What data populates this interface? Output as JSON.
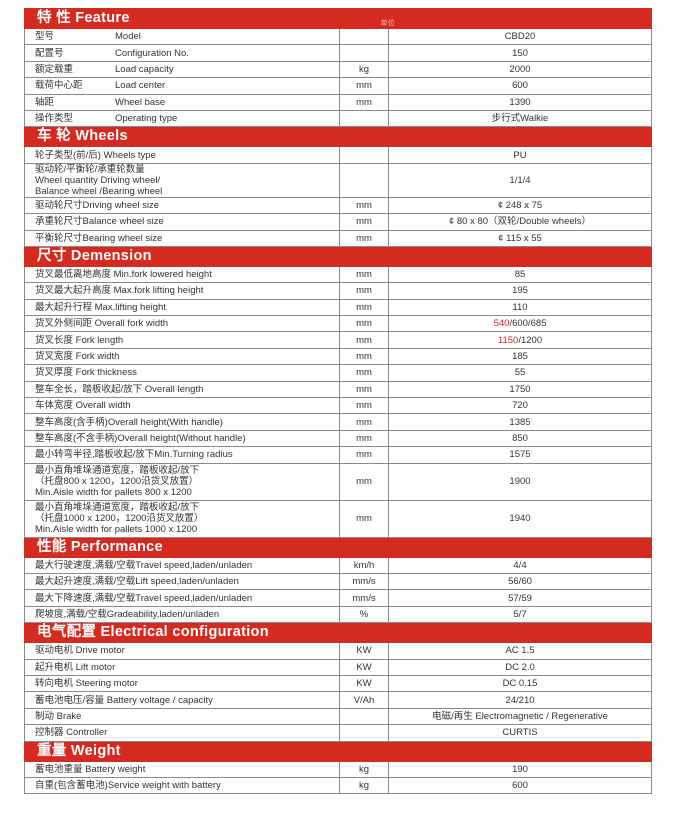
{
  "colors": {
    "accent": "#d42a20",
    "highlight": "#d42a20"
  },
  "sections": [
    {
      "title": "特 性 Feature",
      "unit_header": "单位",
      "rows": [
        {
          "cn": "型号",
          "en": "Model",
          "unit": "",
          "value": "CBD20"
        },
        {
          "cn": "配置号",
          "en": "Configuration    No.",
          "unit": "",
          "value": "150"
        },
        {
          "cn": "额定载重",
          "en": "Load capacity",
          "unit": "kg",
          "value": "2000"
        },
        {
          "cn": "载荷中心距",
          "en": "Load center",
          "unit": "mm",
          "value": "600"
        },
        {
          "cn": "轴距",
          "en": "Wheel base",
          "unit": "mm",
          "value": "1390"
        },
        {
          "cn": "操作类型",
          "en": "Operating  type",
          "unit": "",
          "value": "步行式Walkie"
        }
      ]
    },
    {
      "title": "车 轮 Wheels",
      "rows": [
        {
          "label": "轮子类型(前/后)  Wheels type",
          "unit": "",
          "value": "PU"
        },
        {
          "label": "驱动轮/平衡轮/承重轮数量\nWheel quantity Driving wheel/\nBalance wheel /Bearing wheel",
          "unit": "",
          "value": "1/1/4",
          "tall": 3
        },
        {
          "label": "驱动轮尺寸Driving wheel size",
          "unit": "mm",
          "value": "¢ 248 x 75"
        },
        {
          "label": "承重轮尺寸Balance wheel size",
          "unit": "mm",
          "value": "¢ 80 x 80（双轮/Double wheels）"
        },
        {
          "label": "平衡轮尺寸Bearing wheel size",
          "unit": "mm",
          "value": "¢ 115 x 55"
        }
      ]
    },
    {
      "title": "尺寸 Demension",
      "rows": [
        {
          "label": "货叉最低离地高度 Min.fork lowered  height",
          "unit": "mm",
          "value": "85"
        },
        {
          "label": "货叉最大起升高度 Max.fork lifting height",
          "unit": "mm",
          "value": "195"
        },
        {
          "label": "最大起升行程 Max.lifting height",
          "unit": "mm",
          "value": "110"
        },
        {
          "label": "货叉外侧间距 Overall fork width",
          "unit": "mm",
          "value_highlight": "540",
          "value_rest": "/600/685"
        },
        {
          "label": "货叉长度 Fork length",
          "unit": "mm",
          "value_highlight": "1150",
          "value_rest": "/1200"
        },
        {
          "label": "货叉宽度 Fork width",
          "unit": "mm",
          "value": "185"
        },
        {
          "label": "货叉厚度 Fork thickness",
          "unit": "mm",
          "value": "55"
        },
        {
          "label": "整车全长，踏板收起/放下 Overall length",
          "unit": "mm",
          "value": "1750"
        },
        {
          "label": "车体宽度 Overall width",
          "unit": "mm",
          "value": "720"
        },
        {
          "label": "整车高度(含手柄)Overall height(With handle)",
          "unit": "mm",
          "value": "1385"
        },
        {
          "label": "整车高度(不含手柄)Overall height(Without handle)",
          "unit": "mm",
          "value": "850"
        },
        {
          "label": "最小转弯半径,踏板收起/放下Min.Turning radius",
          "unit": "mm",
          "value": "1575"
        },
        {
          "label": "最小直角堆垛通道宽度，踏板收起/放下\n（托盘800 x 1200，1200沿货叉放置）\nMin.Aisle width for pallets 800 x 1200",
          "unit": "mm",
          "value": "1900",
          "tall": 3
        },
        {
          "label": "最小直角堆垛通道宽度，踏板收起/放下\n（托盘1000 x 1200，1200沿货叉放置）\nMin.Aisle width for pallets 1000 x 1200",
          "unit": "mm",
          "value": "1940",
          "tall": 3
        }
      ]
    },
    {
      "title": "性能 Performance",
      "rows": [
        {
          "label": "最大行驶速度,满载/空载Travel speed,laden/unladen",
          "unit": "km/h",
          "value": "4/4"
        },
        {
          "label": "最大起升速度,满载/空载Lift speed,laden/unladen",
          "unit": "mm/s",
          "value": "56/60"
        },
        {
          "label": "最大下降速度,满载/空载Travel speed,laden/unladen",
          "unit": "mm/s",
          "value": "57/59"
        },
        {
          "label": "爬坡度,满载/空载Gradeability,laden/unladen",
          "unit": "%",
          "value": "5/7"
        }
      ]
    },
    {
      "title": "电气配置 Electrical configuration",
      "rows": [
        {
          "label": "驱动电机 Drive motor",
          "unit": "KW",
          "value": "AC 1.5"
        },
        {
          "label": "起升电机 Lift motor",
          "unit": "KW",
          "value": "DC 2.0"
        },
        {
          "label": "转向电机 Steering motor",
          "unit": "KW",
          "value": "DC 0.15"
        },
        {
          "label": "蓄电池电压/容量  Battery voltage / capacity",
          "unit": "V/Ah",
          "value": "24/210"
        },
        {
          "label": "制动 Brake",
          "unit": "",
          "value": "电磁/再生 Electromagnetic / Regenerative"
        },
        {
          "label": "控制器  Controller",
          "unit": "",
          "value": "CURTIS"
        }
      ]
    },
    {
      "title": "重量 Weight",
      "rows": [
        {
          "label": "蓄电池重量 Battery weight",
          "unit": "kg",
          "value": "190"
        },
        {
          "label": "自重(包含蓄电池)Service weight with battery",
          "unit": "kg",
          "value": "600"
        }
      ]
    }
  ]
}
